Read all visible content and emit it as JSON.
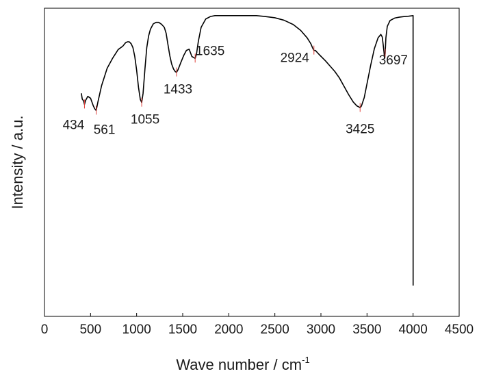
{
  "chart_data": {
    "type": "line",
    "title": "",
    "xlabel": "Wave number / cm",
    "xlabel_superscript": "-1",
    "ylabel": "Intensity / a.u.",
    "xlim": [
      0,
      4500
    ],
    "xticks": [
      0,
      500,
      1000,
      1500,
      2000,
      2500,
      3000,
      3500,
      4000,
      4500
    ],
    "y_ticks_shown": false,
    "grid": false,
    "legend": "none",
    "line_color": "#000000",
    "peak_marker_color": "#e0403a",
    "y_units": "relative intensity (0 = bottom of axes, 100 = top of axes)",
    "series": [
      {
        "x": [
          400,
          410,
          425,
          434,
          445,
          470,
          500,
          530,
          545,
          561,
          580,
          620,
          680,
          740,
          800,
          850,
          880,
          900,
          920,
          940,
          960,
          980,
          1000,
          1020,
          1040,
          1055,
          1070,
          1090,
          1110,
          1130,
          1150,
          1180,
          1210,
          1240,
          1270,
          1300,
          1320,
          1340,
          1360,
          1380,
          1400,
          1420,
          1433,
          1450,
          1480,
          1510,
          1540,
          1570,
          1600,
          1620,
          1635,
          1650,
          1670,
          1700,
          1750,
          1800,
          1850,
          1900,
          2000,
          2100,
          2200,
          2300,
          2400,
          2500,
          2600,
          2700,
          2780,
          2850,
          2890,
          2910,
          2924,
          2940,
          2980,
          3050,
          3100,
          3150,
          3200,
          3250,
          3300,
          3350,
          3390,
          3410,
          3425,
          3440,
          3470,
          3500,
          3540,
          3580,
          3620,
          3650,
          3665,
          3675,
          3685,
          3690,
          3697,
          3705,
          3720,
          3750,
          3800,
          3850,
          3900,
          3950,
          4000,
          4000.5
        ],
        "y": [
          72.4,
          70.5,
          69.9,
          68.8,
          70.0,
          71.4,
          70.8,
          68.3,
          67.4,
          66.8,
          69.6,
          74.9,
          80.5,
          83.8,
          86.6,
          87.7,
          88.8,
          89.1,
          89.1,
          88.5,
          87.2,
          84.3,
          79.9,
          74.4,
          70.4,
          69.4,
          72.4,
          80.2,
          87.2,
          91.0,
          93.2,
          94.9,
          95.4,
          95.4,
          94.8,
          93.8,
          91.9,
          88.2,
          84.6,
          81.9,
          80.3,
          79.4,
          79.2,
          80.1,
          82.4,
          84.6,
          86.3,
          86.7,
          84.3,
          84.0,
          83.7,
          85.2,
          89.3,
          93.8,
          96.5,
          97.3,
          97.6,
          97.6,
          97.6,
          97.6,
          97.6,
          97.6,
          97.3,
          96.9,
          96.1,
          94.7,
          92.8,
          90.4,
          88.5,
          87.1,
          86.3,
          86.3,
          85.0,
          82.9,
          81.2,
          79.5,
          77.4,
          74.7,
          72.0,
          69.6,
          68.3,
          68.0,
          67.7,
          68.3,
          71.0,
          75.5,
          81.5,
          86.9,
          90.4,
          91.5,
          90.7,
          88.3,
          85.6,
          83.7,
          85.3,
          90.4,
          94.1,
          96.0,
          96.8,
          97.1,
          97.3,
          97.4,
          97.6,
          10.0
        ]
      }
    ],
    "peaks": [
      {
        "x": 434,
        "label": "434"
      },
      {
        "x": 561,
        "label": "561"
      },
      {
        "x": 1055,
        "label": "1055"
      },
      {
        "x": 1433,
        "label": "1433"
      },
      {
        "x": 1635,
        "label": "1635"
      },
      {
        "x": 2924,
        "label": "2924"
      },
      {
        "x": 3425,
        "label": "3425"
      },
      {
        "x": 3697,
        "label": "3697"
      }
    ]
  }
}
